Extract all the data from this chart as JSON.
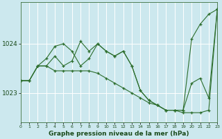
{
  "title": "Graphe pression niveau de la mer (hPa)",
  "bg_color": "#cce8ee",
  "grid_color": "#ffffff",
  "line_color": "#2d6e2d",
  "hours": [
    0,
    1,
    2,
    3,
    4,
    5,
    6,
    7,
    8,
    9,
    10,
    11,
    12,
    13,
    14,
    15,
    16,
    17,
    18,
    19,
    20,
    21,
    22,
    23
  ],
  "series1": [
    1023.25,
    1023.25,
    1023.55,
    1023.55,
    1023.75,
    1023.55,
    1023.65,
    1024.05,
    1023.85,
    1024.0,
    1023.85,
    1023.75,
    1023.85,
    1023.55,
    1023.05,
    1022.85,
    1022.75,
    1022.65,
    1022.65,
    1022.65,
    1024.1,
    1024.4,
    1024.6,
    1024.7
  ],
  "series2": [
    1023.25,
    1023.25,
    1023.55,
    1023.7,
    1023.95,
    1024.0,
    1023.85,
    1023.55,
    1023.7,
    1024.0,
    1023.85,
    1023.75,
    1023.85,
    1023.55,
    1023.05,
    1022.85,
    1022.75,
    1022.65,
    1022.65,
    1022.65,
    1023.2,
    1023.3,
    1022.9,
    1024.7
  ],
  "series3": [
    1023.25,
    1023.25,
    1023.55,
    1023.55,
    1023.45,
    1023.45,
    1023.45,
    1023.45,
    1023.45,
    1023.4,
    1023.3,
    1023.2,
    1023.1,
    1023.0,
    1022.9,
    1022.8,
    1022.75,
    1022.65,
    1022.65,
    1022.6,
    1022.6,
    1022.6,
    1022.65,
    1024.7
  ],
  "yticks": [
    1023,
    1024
  ],
  "ylim": [
    1022.4,
    1024.85
  ],
  "xlim": [
    0,
    23
  ]
}
